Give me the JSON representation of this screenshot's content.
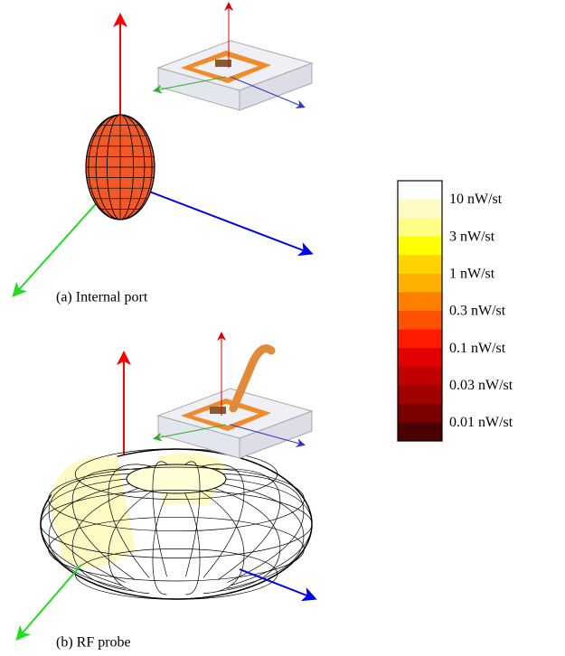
{
  "captions": {
    "a": "(a) Internal port",
    "b": "(b) RF probe"
  },
  "colorbar": {
    "labels": [
      "10 nW/st",
      "3 nW/st",
      "1 nW/st",
      "0.3 nW/st",
      "0.1 nW/st",
      "0.03 nW/st",
      "0.01 nW/st"
    ],
    "colors": [
      "#ffffff",
      "#fff9c4",
      "#ffff88",
      "#ffff00",
      "#ffd200",
      "#ffb000",
      "#ff8000",
      "#ff5200",
      "#ff1a00",
      "#e00000",
      "#c00000",
      "#a00000",
      "#7a0000",
      "#4a0000"
    ]
  }
}
